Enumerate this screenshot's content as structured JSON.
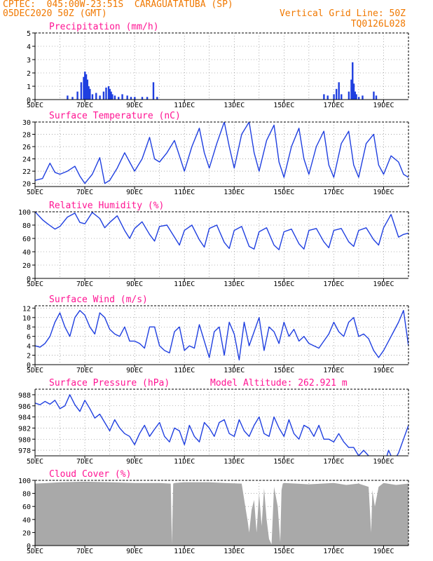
{
  "header": {
    "line1": "CPTEC:  045:00W-23:51S  CARAGUATATUBA (SP)",
    "line2": "05DEC2020 50Z (GMT)",
    "grid_note": "Vertical Grid Line: 50Z",
    "code": "TQ0126L028"
  },
  "x_ticks": [
    "5DEC",
    "7DEC",
    "9DEC",
    "11DEC",
    "13DEC",
    "15DEC",
    "17DEC",
    "19DEC"
  ],
  "colors": {
    "line": "#1f3fe0",
    "bar": "#1f3fe0",
    "cloud": "#a9a9a9",
    "title": "#ff1493",
    "header": "#f07800"
  },
  "chart_data": [
    {
      "type": "bar",
      "title": "Precipitation (mm/h)",
      "ylim": [
        0,
        5
      ],
      "yticks": [
        "0",
        "1",
        "2",
        "3",
        "4",
        "5"
      ],
      "xlim_days": [
        5,
        20
      ],
      "x": [
        6.3,
        6.5,
        6.7,
        6.85,
        6.95,
        7.0,
        7.05,
        7.1,
        7.15,
        7.2,
        7.3,
        7.45,
        7.6,
        7.75,
        7.85,
        7.95,
        8.0,
        8.05,
        8.1,
        8.2,
        8.35,
        8.5,
        8.7,
        8.85,
        9.0,
        9.3,
        9.5,
        9.75,
        9.9,
        16.6,
        16.75,
        17.0,
        17.1,
        17.2,
        17.3,
        17.6,
        17.7,
        17.75,
        17.8,
        17.85,
        17.9,
        18.0,
        18.15,
        18.6,
        18.7
      ],
      "values": [
        0.3,
        0.2,
        0.6,
        1.3,
        1.7,
        2.1,
        1.9,
        1.5,
        1.0,
        0.8,
        0.4,
        0.5,
        0.3,
        0.6,
        0.9,
        1.0,
        0.8,
        0.6,
        0.4,
        0.3,
        0.2,
        0.4,
        0.3,
        0.2,
        0.2,
        0.2,
        0.2,
        1.3,
        0.2,
        0.4,
        0.3,
        0.4,
        0.8,
        1.3,
        0.4,
        0.6,
        1.5,
        2.8,
        1.2,
        0.6,
        0.4,
        0.2,
        0.3,
        0.6,
        0.3
      ]
    },
    {
      "type": "line",
      "title": "Surface Temperature (nC)",
      "ylim": [
        19.5,
        30
      ],
      "yticks": [
        "20",
        "22",
        "24",
        "26",
        "28",
        "30"
      ],
      "x": [
        5,
        5.3,
        5.6,
        5.8,
        6.0,
        6.3,
        6.6,
        6.8,
        7.0,
        7.3,
        7.6,
        7.8,
        8.0,
        8.3,
        8.6,
        8.8,
        9.0,
        9.3,
        9.6,
        9.8,
        10.0,
        10.3,
        10.6,
        10.8,
        11.0,
        11.3,
        11.6,
        11.8,
        12.0,
        12.3,
        12.6,
        12.8,
        13.0,
        13.3,
        13.6,
        13.8,
        14.0,
        14.3,
        14.6,
        14.8,
        15.0,
        15.3,
        15.6,
        15.8,
        16.0,
        16.3,
        16.6,
        16.8,
        17.0,
        17.3,
        17.6,
        17.8,
        18.0,
        18.3,
        18.6,
        18.8,
        19.0,
        19.3,
        19.6,
        19.8,
        20.0
      ],
      "values": [
        20.5,
        20.8,
        23.3,
        21.8,
        21.5,
        22.0,
        22.8,
        21.2,
        20.0,
        21.5,
        24.2,
        20.0,
        20.5,
        22.5,
        25.0,
        23.5,
        22.0,
        24.0,
        27.5,
        24.0,
        23.5,
        25.0,
        27.0,
        24.5,
        22.0,
        26.0,
        29.0,
        25.0,
        22.5,
        26.5,
        30.0,
        26.0,
        22.5,
        28.0,
        30.0,
        25.0,
        22.0,
        27.0,
        29.5,
        23.5,
        21.0,
        26.0,
        29.0,
        24.0,
        21.5,
        26.0,
        28.5,
        23.0,
        21.0,
        26.5,
        28.5,
        23.0,
        21.0,
        26.5,
        28.0,
        23.0,
        21.5,
        24.5,
        23.5,
        21.5,
        21.0
      ]
    },
    {
      "type": "line",
      "title": "Relative Humidity (%)",
      "ylim": [
        0,
        100
      ],
      "yticks": [
        "0",
        "20",
        "40",
        "60",
        "80",
        "100"
      ],
      "x": [
        5,
        5.3,
        5.5,
        5.8,
        6.0,
        6.3,
        6.6,
        6.8,
        7.0,
        7.3,
        7.6,
        7.8,
        8.0,
        8.3,
        8.6,
        8.8,
        9.0,
        9.3,
        9.6,
        9.8,
        10.0,
        10.3,
        10.6,
        10.8,
        11.0,
        11.3,
        11.6,
        11.8,
        12.0,
        12.3,
        12.6,
        12.8,
        13.0,
        13.3,
        13.6,
        13.8,
        14.0,
        14.3,
        14.6,
        14.8,
        15.0,
        15.3,
        15.6,
        15.8,
        16.0,
        16.3,
        16.6,
        16.8,
        17.0,
        17.3,
        17.6,
        17.8,
        18.0,
        18.3,
        18.6,
        18.8,
        19.0,
        19.3,
        19.6,
        19.8,
        20.0
      ],
      "values": [
        100,
        88,
        82,
        74,
        78,
        92,
        98,
        84,
        82,
        99,
        90,
        76,
        84,
        94,
        72,
        60,
        75,
        85,
        66,
        56,
        78,
        80,
        62,
        50,
        72,
        80,
        58,
        47,
        75,
        80,
        54,
        45,
        72,
        78,
        48,
        44,
        70,
        76,
        50,
        43,
        70,
        74,
        52,
        44,
        72,
        75,
        55,
        46,
        72,
        75,
        55,
        48,
        72,
        76,
        58,
        50,
        76,
        96,
        62,
        66,
        68
      ]
    },
    {
      "type": "line",
      "title": "Surface Wind (m/s)",
      "ylim": [
        0,
        12.5
      ],
      "yticks": [
        "0",
        "2",
        "4",
        "6",
        "8",
        "10",
        "12"
      ],
      "x": [
        5,
        5.2,
        5.4,
        5.6,
        5.8,
        6.0,
        6.2,
        6.4,
        6.6,
        6.8,
        7.0,
        7.2,
        7.4,
        7.6,
        7.8,
        8.0,
        8.2,
        8.4,
        8.6,
        8.8,
        9.0,
        9.2,
        9.4,
        9.6,
        9.8,
        10.0,
        10.2,
        10.4,
        10.6,
        10.8,
        11.0,
        11.2,
        11.4,
        11.6,
        11.8,
        12.0,
        12.2,
        12.4,
        12.6,
        12.8,
        13.0,
        13.2,
        13.4,
        13.6,
        13.8,
        14.0,
        14.2,
        14.4,
        14.6,
        14.8,
        15.0,
        15.2,
        15.4,
        15.6,
        15.8,
        16.0,
        16.2,
        16.4,
        16.6,
        16.8,
        17.0,
        17.2,
        17.4,
        17.6,
        17.8,
        18.0,
        18.2,
        18.4,
        18.6,
        18.8,
        19.0,
        19.2,
        19.4,
        19.6,
        19.8,
        20.0
      ],
      "values": [
        4,
        3.7,
        4.5,
        6,
        9,
        11,
        8,
        6,
        10,
        11.5,
        10.5,
        8,
        6.5,
        11,
        10,
        7.5,
        6.5,
        6,
        8,
        5,
        5,
        4.5,
        3.5,
        8,
        8,
        4,
        3,
        2.5,
        7,
        8,
        3,
        4,
        3.5,
        8.5,
        5,
        1.5,
        7,
        8,
        2,
        9,
        6.5,
        1,
        9,
        4,
        7,
        10,
        3,
        8,
        7,
        4.5,
        9,
        6,
        7.5,
        5,
        6,
        4.5,
        4,
        3.5,
        5,
        6.5,
        9,
        7,
        6,
        9,
        10,
        6,
        6.5,
        5.5,
        3,
        1.5,
        3,
        5,
        7,
        9,
        11.5,
        4
      ]
    },
    {
      "type": "line",
      "title": "Surface Pressure (hPa)",
      "annotation": "Model Altitude: 262.921 m",
      "ylim": [
        977,
        989
      ],
      "yticks": [
        "978",
        "980",
        "982",
        "984",
        "986",
        "988"
      ],
      "x": [
        5,
        5.2,
        5.4,
        5.6,
        5.8,
        6.0,
        6.2,
        6.4,
        6.6,
        6.8,
        7.0,
        7.2,
        7.4,
        7.6,
        7.8,
        8.0,
        8.2,
        8.4,
        8.6,
        8.8,
        9.0,
        9.2,
        9.4,
        9.6,
        9.8,
        10.0,
        10.2,
        10.4,
        10.6,
        10.8,
        11.0,
        11.2,
        11.4,
        11.6,
        11.8,
        12.0,
        12.2,
        12.4,
        12.6,
        12.8,
        13.0,
        13.2,
        13.4,
        13.6,
        13.8,
        14.0,
        14.2,
        14.4,
        14.6,
        14.8,
        15.0,
        15.2,
        15.4,
        15.6,
        15.8,
        16.0,
        16.2,
        16.4,
        16.6,
        16.8,
        17.0,
        17.2,
        17.4,
        17.6,
        17.8,
        18.0,
        18.2,
        18.4,
        18.6,
        18.8,
        19.0,
        19.2,
        19.4,
        19.6,
        19.8,
        20.0
      ],
      "values": [
        986.5,
        986.2,
        986.8,
        986.3,
        987.0,
        985.5,
        986.0,
        988.0,
        986.2,
        985.0,
        987.0,
        985.5,
        983.8,
        984.5,
        983.0,
        981.5,
        983.5,
        982.0,
        981.0,
        980.5,
        979.0,
        981.0,
        982.5,
        980.5,
        981.8,
        983.0,
        980.5,
        979.5,
        982.0,
        981.5,
        979.0,
        982.5,
        980.5,
        979.5,
        983.0,
        982.0,
        980.5,
        983.0,
        983.5,
        981.0,
        980.5,
        983.5,
        981.5,
        980.5,
        982.5,
        984.0,
        981.0,
        980.5,
        984.0,
        982.0,
        980.5,
        983.5,
        981.0,
        980.0,
        982.5,
        982.0,
        980.5,
        982.5,
        980.0,
        980.0,
        979.5,
        981.0,
        979.5,
        978.5,
        978.5,
        977.0,
        978.0,
        977.0,
        975.5,
        976.5,
        975.0,
        978.0,
        976.0,
        977.5,
        980.0,
        982.5
      ]
    },
    {
      "type": "area",
      "title": "Cloud Cover (%)",
      "ylim": [
        0,
        100
      ],
      "yticks": [
        "0",
        "20",
        "40",
        "60",
        "80",
        "100"
      ],
      "x": [
        5,
        5.5,
        6,
        7,
        8,
        9,
        10.0,
        10.45,
        10.5,
        10.55,
        10.6,
        11,
        12,
        12.6,
        13.3,
        13.55,
        13.6,
        13.7,
        13.8,
        13.9,
        14.0,
        14.1,
        14.2,
        14.3,
        14.4,
        14.5,
        14.6,
        14.75,
        14.85,
        14.9,
        14.95,
        15.0,
        15.5,
        16,
        17,
        17.5,
        18,
        18.4,
        18.5,
        18.55,
        18.65,
        18.8,
        19,
        19.5,
        20
      ],
      "values": [
        95,
        96,
        97,
        98,
        97,
        96,
        96,
        95,
        2,
        95,
        96,
        97,
        97,
        96,
        95,
        35,
        20,
        55,
        70,
        20,
        80,
        30,
        88,
        40,
        10,
        2,
        90,
        60,
        5,
        85,
        95,
        96,
        95,
        94,
        96,
        93,
        95,
        90,
        20,
        85,
        60,
        90,
        96,
        93,
        95
      ]
    }
  ]
}
